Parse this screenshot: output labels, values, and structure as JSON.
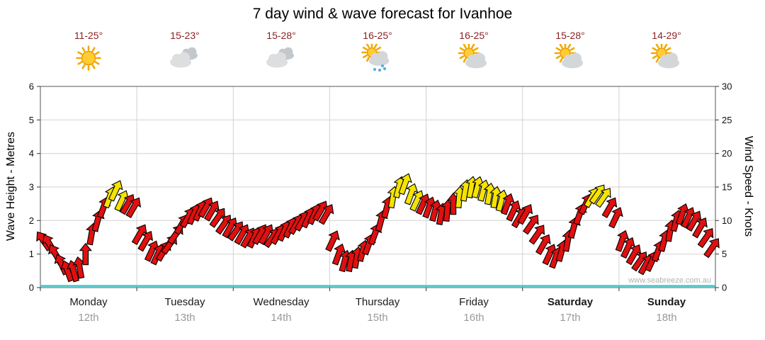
{
  "title": "7 day wind & wave forecast for Ivanhoe",
  "watermark": "www.seabreeze.com.au",
  "axes": {
    "left_title": "Wave Height - Metres",
    "right_title": "Wind Speed - Knots",
    "left_ticks": [
      0,
      1,
      2,
      3,
      4,
      5,
      6
    ],
    "right_ticks": [
      0,
      5,
      10,
      15,
      20,
      25,
      30
    ]
  },
  "days": [
    {
      "name": "Monday",
      "date": "12th",
      "temp": "11-25°",
      "icon": "sunny",
      "bold": false
    },
    {
      "name": "Tuesday",
      "date": "13th",
      "temp": "15-23°",
      "icon": "cloudy",
      "bold": false
    },
    {
      "name": "Wednesday",
      "date": "14th",
      "temp": "15-28°",
      "icon": "cloudy",
      "bold": false
    },
    {
      "name": "Thursday",
      "date": "15th",
      "temp": "16-25°",
      "icon": "sun-showers",
      "bold": false
    },
    {
      "name": "Friday",
      "date": "16th",
      "temp": "16-25°",
      "icon": "partly-cloudy",
      "bold": false
    },
    {
      "name": "Saturday",
      "date": "17th",
      "temp": "15-28°",
      "icon": "partly-cloudy",
      "bold": true
    },
    {
      "name": "Sunday",
      "date": "18th",
      "temp": "14-29°",
      "icon": "partly-cloudy",
      "bold": true
    }
  ],
  "chart_data": {
    "type": "wind-arrow-time-series",
    "title": "7 day wind & wave forecast for Ivanhoe",
    "ylabel_left": "Wave Height - Metres",
    "ylabel_right": "Wind Speed - Knots",
    "ylim_left_m": [
      0,
      6
    ],
    "ylim_right_knots": [
      0,
      30
    ],
    "grid": true,
    "wave_height_m": 0.05,
    "yellow_threshold_knots": 13,
    "colors": {
      "low": "#E01010",
      "high": "#F5E400",
      "wave": "#3CC8CC"
    },
    "series": [
      {
        "day": "Monday",
        "speeds_knots": [
          7,
          6.5,
          5,
          3.5,
          2.5,
          2.5,
          3,
          5,
          8,
          10,
          12,
          13.5,
          14.5,
          13,
          12.5,
          12
        ],
        "dirs_deg": [
          -35,
          -30,
          -30,
          -25,
          -20,
          -15,
          -10,
          0,
          10,
          15,
          20,
          20,
          25,
          25,
          30,
          30
        ]
      },
      {
        "day": "Tuesday",
        "speeds_knots": [
          8,
          7,
          5.5,
          5,
          5.5,
          6.5,
          8,
          9.5,
          10.5,
          11,
          11.5,
          12,
          11.5,
          10.5,
          9.5,
          9
        ],
        "dirs_deg": [
          30,
          30,
          25,
          25,
          30,
          35,
          35,
          30,
          30,
          25,
          25,
          30,
          30,
          35,
          35,
          30
        ]
      },
      {
        "day": "Wednesday",
        "speeds_knots": [
          8.5,
          8,
          7.5,
          7.5,
          8,
          8,
          7.5,
          8,
          8.5,
          9,
          9.5,
          10,
          10.5,
          11,
          11.5,
          11
        ],
        "dirs_deg": [
          35,
          30,
          30,
          25,
          30,
          30,
          35,
          30,
          25,
          25,
          30,
          30,
          25,
          25,
          30,
          30
        ]
      },
      {
        "day": "Thursday",
        "speeds_knots": [
          7,
          5,
          4,
          4,
          4.5,
          5.5,
          6.5,
          8,
          10,
          12,
          13.5,
          15,
          15.5,
          14,
          13,
          12.5
        ],
        "dirs_deg": [
          25,
          20,
          15,
          10,
          10,
          15,
          20,
          20,
          15,
          15,
          10,
          15,
          20,
          20,
          25,
          25
        ]
      },
      {
        "day": "Friday",
        "speeds_knots": [
          12,
          11.5,
          11,
          11.5,
          12.5,
          13.5,
          14.5,
          15,
          15,
          14.5,
          14,
          13.5,
          13,
          12.5,
          11.5,
          10.5
        ],
        "dirs_deg": [
          20,
          15,
          10,
          5,
          0,
          5,
          10,
          10,
          15,
          15,
          10,
          10,
          15,
          20,
          25,
          30
        ]
      },
      {
        "day": "Saturday",
        "speeds_knots": [
          11,
          9.5,
          8,
          6.5,
          5,
          4.5,
          5.5,
          7,
          9,
          11,
          12.5,
          13.5,
          14,
          13.5,
          12,
          10.5
        ],
        "dirs_deg": [
          30,
          35,
          35,
          30,
          25,
          20,
          15,
          10,
          15,
          20,
          25,
          30,
          35,
          35,
          30,
          25
        ]
      },
      {
        "day": "Sunday",
        "speeds_knots": [
          7,
          6,
          5,
          4,
          3.5,
          4,
          5.5,
          7,
          8.5,
          10,
          11,
          10.5,
          10,
          9,
          7.5,
          6
        ],
        "dirs_deg": [
          20,
          25,
          30,
          35,
          30,
          25,
          20,
          15,
          10,
          15,
          20,
          25,
          30,
          30,
          35,
          35
        ]
      }
    ]
  }
}
